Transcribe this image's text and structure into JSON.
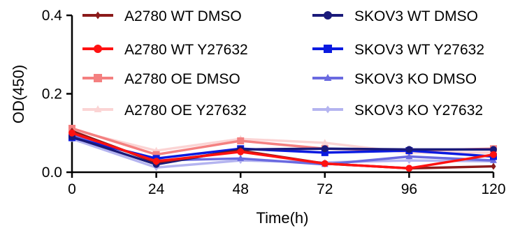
{
  "chart_data": {
    "type": "line",
    "xlabel": "Time(h)",
    "ylabel": "OD(450)",
    "x": [
      0,
      24,
      48,
      72,
      96,
      120
    ],
    "xlim": [
      0,
      120
    ],
    "ylim": [
      0,
      0.4
    ],
    "xticks": [
      "0",
      "24",
      "48",
      "72",
      "96",
      "120"
    ],
    "yticks": [
      "0.0",
      "0.2",
      "0.4"
    ],
    "grid": false,
    "legend_position": "top-right",
    "series": [
      {
        "name": "A2780 WT DMSO",
        "color": "#8b1a1a",
        "marker": "diamond",
        "values": [
          0.105,
          0.025,
          0.055,
          0.022,
          0.01,
          0.015
        ]
      },
      {
        "name": "A2780 WT Y27632",
        "color": "#ff1111",
        "marker": "circle",
        "values": [
          0.1,
          0.028,
          0.052,
          0.022,
          0.01,
          0.045
        ]
      },
      {
        "name": "A2780 OE DMSO",
        "color": "#f48080",
        "marker": "square",
        "values": [
          0.112,
          0.045,
          0.08,
          0.06,
          0.055,
          0.06
        ]
      },
      {
        "name": "A2780 OE Y27632",
        "color": "#fbd4d4",
        "marker": "triangle",
        "values": [
          0.108,
          0.055,
          0.085,
          0.075,
          0.05,
          0.05
        ]
      },
      {
        "name": "SKOV3 WT DMSO",
        "color": "#1a1a7a",
        "marker": "circle",
        "values": [
          0.09,
          0.02,
          0.058,
          0.06,
          0.058,
          0.058
        ]
      },
      {
        "name": "SKOV3 WT Y27632",
        "color": "#0a1ae0",
        "marker": "square",
        "values": [
          0.088,
          0.035,
          0.06,
          0.05,
          0.055,
          0.04
        ]
      },
      {
        "name": "SKOV3 KO DMSO",
        "color": "#6a6ae0",
        "marker": "triangle",
        "values": [
          0.095,
          0.03,
          0.035,
          0.02,
          0.04,
          0.03
        ]
      },
      {
        "name": "SKOV3 KO Y27632",
        "color": "#b4b4f0",
        "marker": "diamond",
        "values": [
          0.085,
          0.012,
          0.03,
          0.025,
          0.03,
          0.028
        ]
      }
    ]
  }
}
